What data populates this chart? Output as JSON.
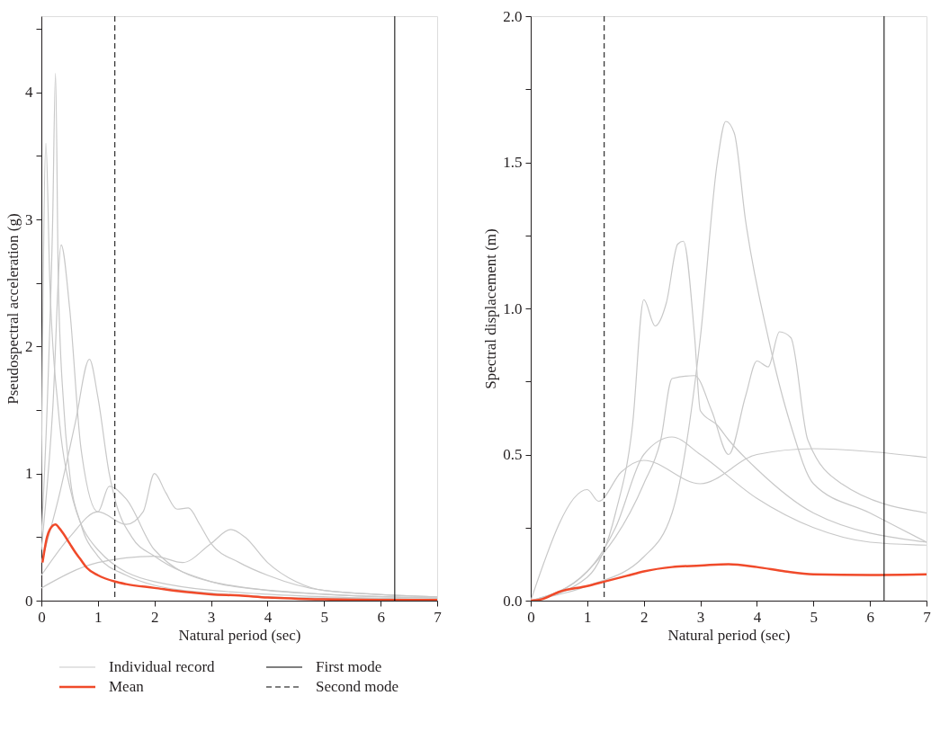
{
  "chart_data": [
    {
      "type": "line",
      "xlabel": "Natural period (sec)",
      "ylabel": "Pseudospectral acceleration (g)",
      "xlim": [
        0,
        7
      ],
      "ylim": [
        0,
        4.6
      ],
      "xticks": [
        0,
        1,
        2,
        3,
        4,
        5,
        6,
        7
      ],
      "yticks": [
        0,
        {
          "value": 0.5,
          "label": null
        },
        1,
        {
          "value": 1.5,
          "label": null
        },
        2,
        {
          "value": 2.5,
          "label": null
        },
        3,
        {
          "value": 3.5,
          "label": null
        },
        4,
        {
          "value": 4.5,
          "label": null
        }
      ],
      "grid": false,
      "legend": "bottom",
      "marker": "none",
      "series": [
        {
          "name": "Individual record",
          "color": "#c8c8c8",
          "x": [
            0,
            0.1,
            0.2,
            0.25,
            0.3,
            0.4,
            0.5,
            0.7,
            1.0,
            1.5,
            2,
            3,
            4,
            5,
            7
          ],
          "values": [
            0.5,
            1.5,
            3,
            4.15,
            2.5,
            1.5,
            1.0,
            0.6,
            0.35,
            0.2,
            0.12,
            0.06,
            0.03,
            0.02,
            0.01
          ]
        },
        {
          "color": "#c8c8c8",
          "x": [
            0,
            0.3,
            0.6,
            0.85,
            1.0,
            1.2,
            1.3,
            1.6,
            2,
            3,
            4,
            5,
            7
          ],
          "values": [
            0.3,
            0.8,
            1.4,
            1.9,
            1.6,
            1.0,
            0.8,
            0.5,
            0.35,
            0.15,
            0.08,
            0.05,
            0.02
          ]
        },
        {
          "color": "#c8c8c8",
          "x": [
            0,
            0.5,
            1.0,
            1.5,
            1.8,
            2.0,
            2.2,
            2.4,
            2.6,
            2.8,
            3,
            3.5,
            4,
            5,
            7
          ],
          "values": [
            0.2,
            0.5,
            0.7,
            0.6,
            0.7,
            1.0,
            0.85,
            0.72,
            0.73,
            0.6,
            0.45,
            0.3,
            0.2,
            0.08,
            0.03
          ]
        },
        {
          "color": "#c8c8c8",
          "x": [
            0,
            1,
            2,
            2.5,
            3,
            3.35,
            3.6,
            4,
            4.5,
            5,
            7
          ],
          "values": [
            0.1,
            0.3,
            0.35,
            0.3,
            0.45,
            0.56,
            0.5,
            0.3,
            0.15,
            0.08,
            0.03
          ]
        },
        {
          "color": "#c8c8c8",
          "x": [
            0,
            0.2,
            0.35,
            0.5,
            0.7,
            1,
            1.2,
            1.5,
            2,
            3,
            5,
            7
          ],
          "values": [
            0.4,
            1.5,
            2.8,
            2.3,
            1.2,
            0.7,
            0.9,
            0.8,
            0.4,
            0.15,
            0.05,
            0.02
          ]
        },
        {
          "color": "#c8c8c8",
          "x": [
            0,
            0.08,
            0.15,
            0.3,
            0.5,
            1,
            2,
            4,
            7
          ],
          "values": [
            1.0,
            3.6,
            2.5,
            1.5,
            0.9,
            0.4,
            0.15,
            0.05,
            0.01
          ]
        },
        {
          "name": "Mean",
          "color": "#f04a2a",
          "x": [
            0.02,
            0.1,
            0.15,
            0.25,
            0.3,
            0.4,
            0.5,
            0.6,
            0.7,
            0.8,
            1.0,
            1.3,
            1.5,
            2,
            2.5,
            3,
            3.5,
            4,
            5,
            6,
            7
          ],
          "values": [
            0.3,
            0.5,
            0.56,
            0.6,
            0.58,
            0.52,
            0.45,
            0.38,
            0.32,
            0.26,
            0.2,
            0.15,
            0.13,
            0.1,
            0.07,
            0.05,
            0.04,
            0.025,
            0.01,
            0.005,
            0.005
          ]
        }
      ],
      "ref_lines": [
        {
          "axis": "x",
          "value": 6.25,
          "label": "First mode",
          "color": "#000000",
          "line_style": "solid"
        },
        {
          "axis": "x",
          "value": 1.3,
          "label": "Second mode",
          "color": "#000000",
          "line_style": "dashed"
        }
      ]
    },
    {
      "type": "line",
      "xlabel": "Natural period (sec)",
      "ylabel": "Spectral displacement (m)",
      "xlim": [
        0,
        7
      ],
      "ylim": [
        0,
        2
      ],
      "xticks": [
        0,
        1,
        2,
        3,
        4,
        5,
        6,
        7
      ],
      "yticks": [
        {
          "value": 0,
          "label": "0.0"
        },
        {
          "value": 0.25,
          "label": null
        },
        {
          "value": 0.5,
          "label": "0.5"
        },
        {
          "value": 0.75,
          "label": null
        },
        {
          "value": 1,
          "label": "1.0"
        },
        {
          "value": 1.25,
          "label": null
        },
        {
          "value": 1.5,
          "label": "1.5"
        },
        {
          "value": 1.75,
          "label": null
        },
        {
          "value": 2,
          "label": "2.0"
        }
      ],
      "grid": false,
      "marker": "none",
      "series": [
        {
          "color": "#c8c8c8",
          "x": [
            0,
            1,
            2,
            2.5,
            3,
            3.3,
            3.45,
            3.6,
            3.8,
            4.2,
            4.6,
            5,
            6,
            7
          ],
          "values": [
            0,
            0.05,
            0.15,
            0.3,
            0.9,
            1.5,
            1.64,
            1.6,
            1.3,
            0.9,
            0.6,
            0.4,
            0.3,
            0.2
          ]
        },
        {
          "color": "#c8c8c8",
          "x": [
            0,
            1,
            1.5,
            1.8,
            2.0,
            2.2,
            2.4,
            2.6,
            2.7,
            2.9,
            3.0,
            3.3,
            3.5,
            4,
            5,
            7
          ],
          "values": [
            0,
            0.08,
            0.3,
            0.6,
            1.03,
            0.94,
            1.02,
            1.22,
            1.23,
            0.9,
            0.65,
            0.6,
            0.55,
            0.45,
            0.3,
            0.2
          ]
        },
        {
          "color": "#c8c8c8",
          "x": [
            0,
            1,
            2,
            2.3,
            2.5,
            2.9,
            3.2,
            3.5,
            3.8,
            4,
            4.2,
            4.4,
            4.6,
            4.9,
            5.5,
            7
          ],
          "values": [
            0,
            0.1,
            0.4,
            0.55,
            0.76,
            0.77,
            0.65,
            0.5,
            0.7,
            0.82,
            0.8,
            0.92,
            0.9,
            0.55,
            0.4,
            0.3
          ]
        },
        {
          "color": "#c8c8c8",
          "x": [
            0,
            1,
            1.2,
            1.6,
            2,
            3,
            4,
            5,
            6,
            7
          ],
          "values": [
            0,
            0.38,
            0.34,
            0.44,
            0.48,
            0.4,
            0.5,
            0.52,
            0.51,
            0.49
          ]
        },
        {
          "color": "#c8c8c8",
          "x": [
            0,
            1,
            1.5,
            2,
            2.5,
            3,
            4,
            5,
            6,
            7
          ],
          "values": [
            0,
            0.1,
            0.25,
            0.5,
            0.56,
            0.5,
            0.35,
            0.25,
            0.2,
            0.19
          ]
        },
        {
          "color": "#f04a2a",
          "x": [
            0,
            0.2,
            0.5,
            1,
            1.3,
            1.7,
            2,
            2.5,
            3,
            3.5,
            4,
            4.5,
            5,
            6,
            7
          ],
          "values": [
            0,
            0.005,
            0.03,
            0.05,
            0.065,
            0.085,
            0.1,
            0.115,
            0.12,
            0.125,
            0.115,
            0.1,
            0.09,
            0.088,
            0.09
          ]
        }
      ],
      "ref_lines": [
        {
          "axis": "x",
          "value": 6.25,
          "color": "#000000",
          "line_style": "solid"
        },
        {
          "axis": "x",
          "value": 1.3,
          "color": "#000000",
          "line_style": "dashed"
        }
      ]
    }
  ]
}
